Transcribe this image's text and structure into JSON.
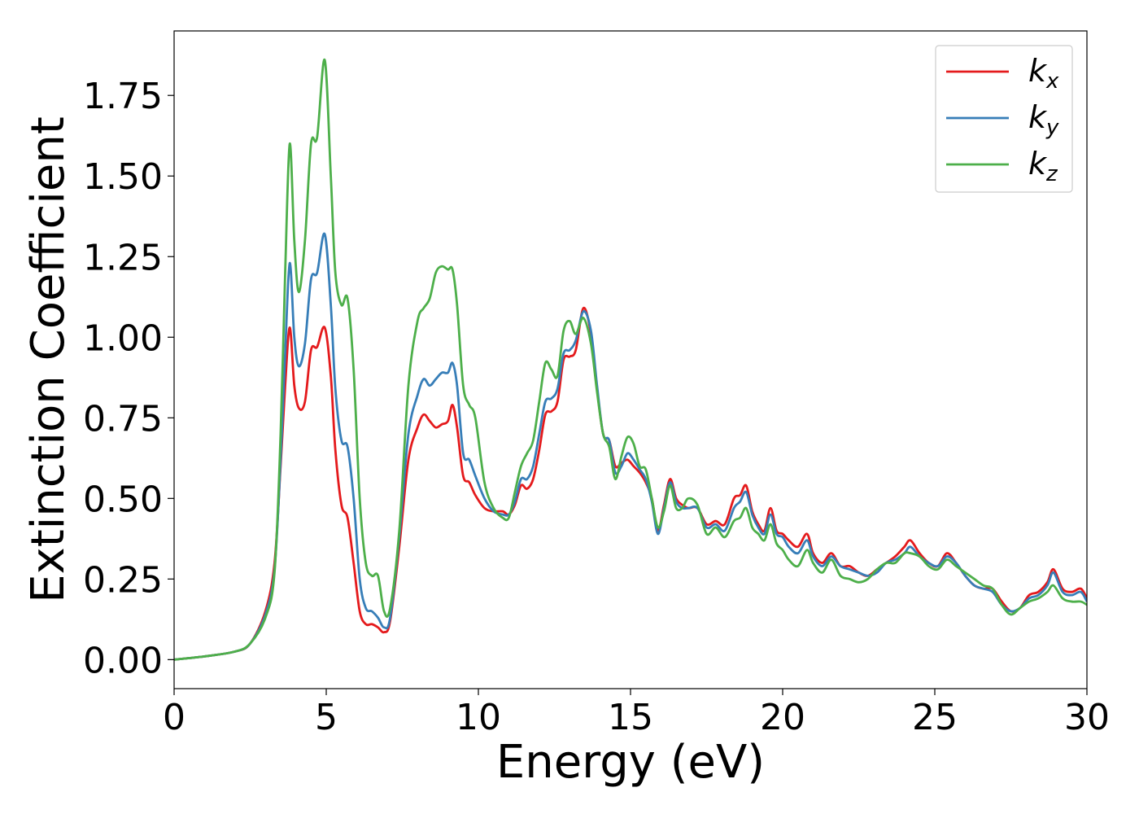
{
  "chart_data": {
    "type": "line",
    "xlabel": "Energy (eV)",
    "ylabel": "Extinction Coefficient",
    "xlim": [
      0,
      30
    ],
    "ylim": [
      -0.09,
      1.95
    ],
    "x_ticks": [
      0,
      5,
      10,
      15,
      20,
      25,
      30
    ],
    "x_tick_labels": [
      "0",
      "5",
      "10",
      "15",
      "20",
      "25",
      "30"
    ],
    "y_ticks": [
      0.0,
      0.25,
      0.5,
      0.75,
      1.0,
      1.25,
      1.5,
      1.75
    ],
    "y_tick_labels": [
      "0.00",
      "0.25",
      "0.50",
      "0.75",
      "1.00",
      "1.25",
      "1.50",
      "1.75"
    ],
    "grid": false,
    "legend_position": "top-right",
    "series": [
      {
        "name": "k_x",
        "label_main": "k",
        "label_sub": "x",
        "color": "#e41a1c",
        "x": [
          0,
          1,
          2,
          2.5,
          3,
          3.3,
          3.5,
          3.65,
          3.8,
          3.95,
          4.1,
          4.3,
          4.5,
          4.7,
          4.95,
          5.15,
          5.3,
          5.5,
          5.7,
          5.9,
          6.1,
          6.3,
          6.5,
          6.7,
          6.9,
          7.1,
          7.4,
          7.7,
          8.0,
          8.2,
          8.4,
          8.6,
          8.8,
          9.0,
          9.15,
          9.3,
          9.5,
          9.7,
          9.9,
          10.2,
          10.5,
          10.8,
          11.0,
          11.2,
          11.4,
          11.6,
          11.8,
          12.0,
          12.2,
          12.4,
          12.6,
          12.8,
          13.0,
          13.2,
          13.45,
          13.7,
          13.9,
          14.1,
          14.3,
          14.5,
          14.7,
          14.9,
          15.1,
          15.3,
          15.5,
          15.7,
          15.9,
          16.1,
          16.3,
          16.5,
          16.7,
          16.9,
          17.2,
          17.5,
          17.8,
          18.1,
          18.4,
          18.6,
          18.8,
          19.0,
          19.2,
          19.4,
          19.6,
          19.8,
          20.0,
          20.2,
          20.5,
          20.8,
          21.0,
          21.3,
          21.6,
          21.9,
          22.2,
          22.5,
          22.8,
          23.1,
          23.4,
          23.7,
          24.0,
          24.2,
          24.5,
          24.8,
          25.1,
          25.4,
          25.7,
          26.0,
          26.3,
          26.6,
          26.9,
          27.2,
          27.5,
          27.8,
          28.1,
          28.4,
          28.7,
          28.9,
          29.2,
          29.5,
          29.8,
          30.0
        ],
        "y": [
          0.0,
          0.01,
          0.025,
          0.05,
          0.15,
          0.3,
          0.6,
          0.85,
          1.03,
          0.85,
          0.78,
          0.8,
          0.96,
          0.97,
          1.03,
          0.88,
          0.65,
          0.48,
          0.44,
          0.3,
          0.15,
          0.11,
          0.11,
          0.1,
          0.085,
          0.12,
          0.35,
          0.62,
          0.72,
          0.76,
          0.74,
          0.72,
          0.73,
          0.74,
          0.79,
          0.72,
          0.57,
          0.55,
          0.51,
          0.47,
          0.46,
          0.46,
          0.45,
          0.48,
          0.54,
          0.53,
          0.56,
          0.65,
          0.76,
          0.77,
          0.8,
          0.93,
          0.94,
          0.96,
          1.09,
          1.01,
          0.84,
          0.7,
          0.68,
          0.6,
          0.61,
          0.62,
          0.6,
          0.58,
          0.55,
          0.5,
          0.4,
          0.48,
          0.56,
          0.5,
          0.48,
          0.47,
          0.47,
          0.42,
          0.43,
          0.42,
          0.5,
          0.51,
          0.54,
          0.46,
          0.42,
          0.4,
          0.47,
          0.4,
          0.39,
          0.37,
          0.35,
          0.39,
          0.33,
          0.3,
          0.33,
          0.29,
          0.29,
          0.27,
          0.26,
          0.28,
          0.3,
          0.32,
          0.35,
          0.37,
          0.33,
          0.3,
          0.29,
          0.33,
          0.3,
          0.26,
          0.23,
          0.22,
          0.22,
          0.18,
          0.15,
          0.16,
          0.2,
          0.21,
          0.24,
          0.28,
          0.22,
          0.21,
          0.22,
          0.19
        ]
      },
      {
        "name": "k_y",
        "label_main": "k",
        "label_sub": "y",
        "color": "#377eb8",
        "x": [
          0,
          1,
          2,
          2.5,
          3,
          3.3,
          3.5,
          3.65,
          3.8,
          3.95,
          4.1,
          4.3,
          4.5,
          4.7,
          4.95,
          5.15,
          5.3,
          5.5,
          5.7,
          5.9,
          6.1,
          6.3,
          6.5,
          6.7,
          6.9,
          7.1,
          7.4,
          7.7,
          8.0,
          8.2,
          8.4,
          8.6,
          8.8,
          9.0,
          9.15,
          9.3,
          9.5,
          9.7,
          9.9,
          10.2,
          10.5,
          10.8,
          11.0,
          11.2,
          11.4,
          11.6,
          11.8,
          12.0,
          12.2,
          12.4,
          12.6,
          12.8,
          13.0,
          13.2,
          13.45,
          13.7,
          13.9,
          14.1,
          14.3,
          14.5,
          14.7,
          14.9,
          15.1,
          15.3,
          15.5,
          15.7,
          15.9,
          16.1,
          16.3,
          16.5,
          16.7,
          16.9,
          17.2,
          17.5,
          17.8,
          18.1,
          18.4,
          18.6,
          18.8,
          19.0,
          19.2,
          19.4,
          19.6,
          19.8,
          20.0,
          20.2,
          20.5,
          20.8,
          21.0,
          21.3,
          21.6,
          21.9,
          22.2,
          22.5,
          22.8,
          23.1,
          23.4,
          23.7,
          24.0,
          24.2,
          24.5,
          24.8,
          25.1,
          25.4,
          25.7,
          26.0,
          26.3,
          26.6,
          26.9,
          27.2,
          27.5,
          27.8,
          28.1,
          28.4,
          28.7,
          28.9,
          29.2,
          29.5,
          29.8,
          30.0
        ],
        "y": [
          0.0,
          0.01,
          0.025,
          0.05,
          0.14,
          0.28,
          0.62,
          0.95,
          1.23,
          1.0,
          0.91,
          0.98,
          1.18,
          1.2,
          1.32,
          1.1,
          0.84,
          0.68,
          0.66,
          0.5,
          0.25,
          0.16,
          0.15,
          0.13,
          0.1,
          0.13,
          0.38,
          0.7,
          0.82,
          0.87,
          0.85,
          0.87,
          0.89,
          0.89,
          0.92,
          0.85,
          0.64,
          0.62,
          0.57,
          0.5,
          0.46,
          0.45,
          0.45,
          0.49,
          0.56,
          0.56,
          0.6,
          0.7,
          0.8,
          0.81,
          0.84,
          0.95,
          0.96,
          0.99,
          1.08,
          1.02,
          0.85,
          0.7,
          0.68,
          0.58,
          0.6,
          0.64,
          0.62,
          0.59,
          0.56,
          0.49,
          0.39,
          0.47,
          0.55,
          0.49,
          0.47,
          0.47,
          0.47,
          0.41,
          0.42,
          0.4,
          0.47,
          0.49,
          0.52,
          0.45,
          0.41,
          0.39,
          0.45,
          0.39,
          0.38,
          0.35,
          0.33,
          0.37,
          0.32,
          0.29,
          0.32,
          0.29,
          0.28,
          0.27,
          0.26,
          0.27,
          0.3,
          0.31,
          0.33,
          0.35,
          0.32,
          0.3,
          0.29,
          0.32,
          0.3,
          0.26,
          0.23,
          0.22,
          0.21,
          0.17,
          0.15,
          0.16,
          0.19,
          0.2,
          0.23,
          0.27,
          0.21,
          0.2,
          0.21,
          0.18
        ]
      },
      {
        "name": "k_z",
        "label_main": "k",
        "label_sub": "z",
        "color": "#4daf4a",
        "x": [
          0,
          1,
          2,
          2.5,
          3,
          3.3,
          3.5,
          3.65,
          3.8,
          3.95,
          4.1,
          4.3,
          4.5,
          4.7,
          4.95,
          5.15,
          5.3,
          5.5,
          5.7,
          5.9,
          6.1,
          6.3,
          6.5,
          6.7,
          6.9,
          7.1,
          7.4,
          7.7,
          8.0,
          8.2,
          8.4,
          8.6,
          8.8,
          9.0,
          9.15,
          9.3,
          9.5,
          9.7,
          9.9,
          10.2,
          10.5,
          10.8,
          11.0,
          11.2,
          11.4,
          11.6,
          11.8,
          12.0,
          12.2,
          12.4,
          12.6,
          12.8,
          13.0,
          13.2,
          13.45,
          13.7,
          13.9,
          14.1,
          14.3,
          14.5,
          14.7,
          14.9,
          15.1,
          15.3,
          15.5,
          15.7,
          15.9,
          16.1,
          16.3,
          16.5,
          16.7,
          16.9,
          17.2,
          17.5,
          17.8,
          18.1,
          18.4,
          18.6,
          18.8,
          19.0,
          19.2,
          19.4,
          19.6,
          19.8,
          20.0,
          20.2,
          20.5,
          20.8,
          21.0,
          21.3,
          21.6,
          21.9,
          22.2,
          22.5,
          22.8,
          23.1,
          23.4,
          23.7,
          24.0,
          24.2,
          24.5,
          24.8,
          25.1,
          25.4,
          25.7,
          26.0,
          26.3,
          26.6,
          26.9,
          27.2,
          27.5,
          27.8,
          28.1,
          28.4,
          28.7,
          28.9,
          29.2,
          29.5,
          29.8,
          30.0
        ],
        "y": [
          0.0,
          0.01,
          0.025,
          0.05,
          0.13,
          0.27,
          0.7,
          1.2,
          1.6,
          1.3,
          1.14,
          1.3,
          1.6,
          1.62,
          1.86,
          1.5,
          1.2,
          1.1,
          1.12,
          0.9,
          0.5,
          0.3,
          0.26,
          0.26,
          0.15,
          0.16,
          0.4,
          0.85,
          1.05,
          1.09,
          1.12,
          1.2,
          1.22,
          1.21,
          1.21,
          1.1,
          0.85,
          0.79,
          0.75,
          0.55,
          0.47,
          0.44,
          0.44,
          0.52,
          0.6,
          0.64,
          0.68,
          0.8,
          0.92,
          0.9,
          0.88,
          1.02,
          1.05,
          1.01,
          1.06,
          0.98,
          0.83,
          0.7,
          0.66,
          0.56,
          0.63,
          0.69,
          0.67,
          0.6,
          0.59,
          0.5,
          0.41,
          0.46,
          0.54,
          0.47,
          0.47,
          0.5,
          0.48,
          0.39,
          0.41,
          0.38,
          0.43,
          0.44,
          0.47,
          0.41,
          0.39,
          0.37,
          0.42,
          0.36,
          0.34,
          0.31,
          0.29,
          0.34,
          0.3,
          0.27,
          0.31,
          0.26,
          0.25,
          0.24,
          0.25,
          0.28,
          0.3,
          0.3,
          0.33,
          0.33,
          0.32,
          0.29,
          0.28,
          0.31,
          0.29,
          0.27,
          0.25,
          0.23,
          0.22,
          0.17,
          0.14,
          0.16,
          0.18,
          0.19,
          0.21,
          0.23,
          0.19,
          0.18,
          0.18,
          0.17
        ]
      }
    ]
  }
}
